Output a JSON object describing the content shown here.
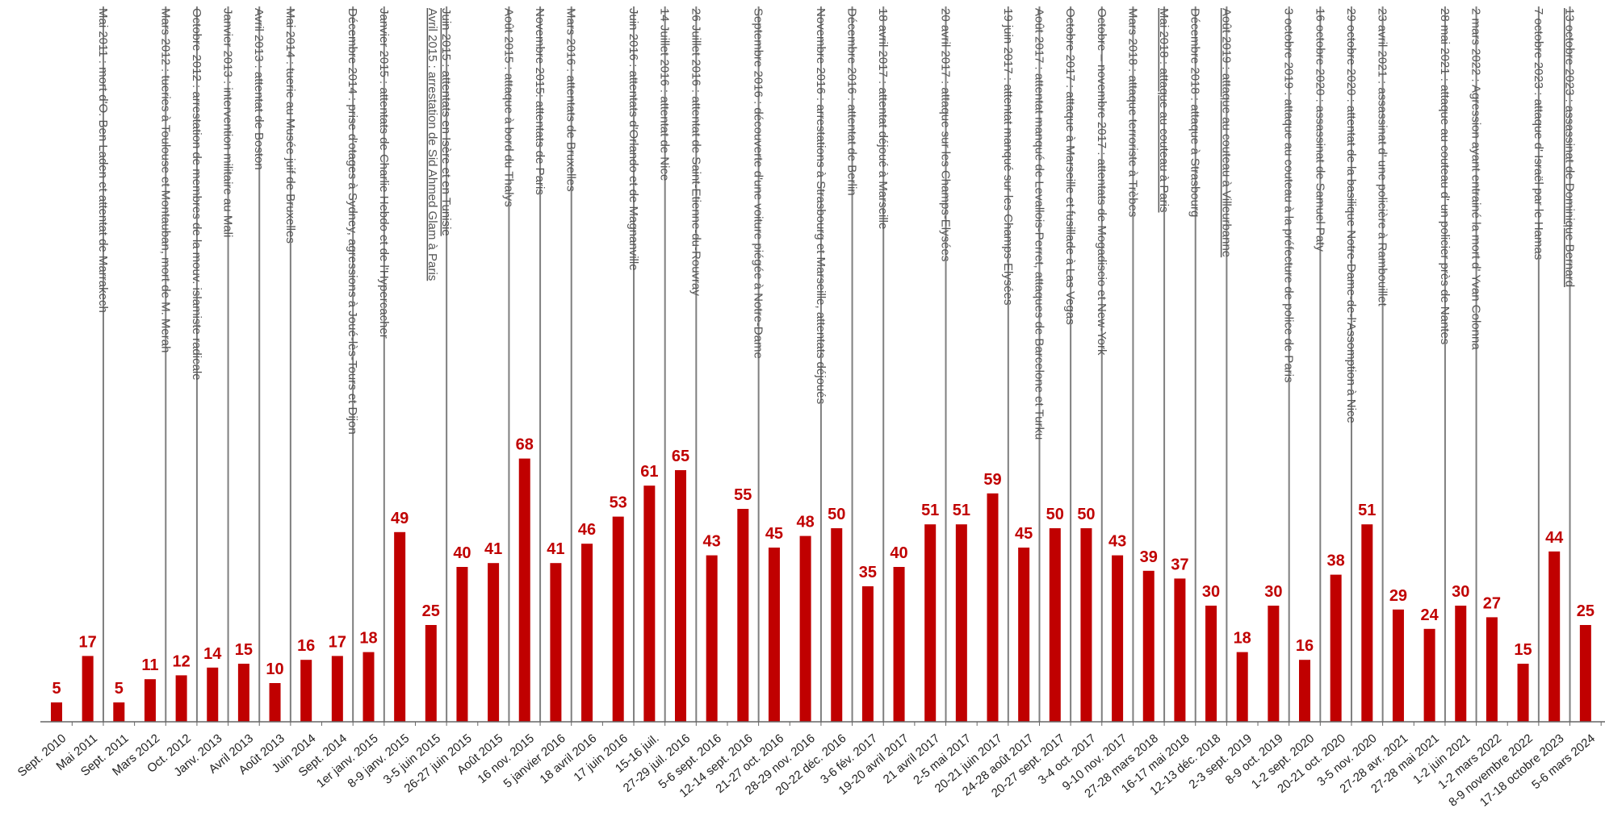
{
  "colors": {
    "bar": "#c00000",
    "value_label": "#c00000",
    "event_line": "#7f7f7f",
    "event_text": "#555555",
    "axis": "#666666",
    "tick_label": "#222222"
  },
  "chart_data": {
    "type": "bar",
    "title": "",
    "xlabel": "",
    "ylabel": "",
    "ylim": [
      0,
      90
    ],
    "grid": false,
    "legend": "none",
    "categories": [
      "Sept. 2010",
      "Mai 2011",
      "Sept. 2011",
      "Mars 2012",
      "Oct. 2012",
      "Janv. 2013",
      "Avril 2013",
      "Août 2013",
      "Juin 2014",
      "Sept. 2014",
      "1er janv. 2015",
      "8-9 janv. 2015",
      "3-5 juin 2015",
      "26-27 juin 2015",
      "Août 2015",
      "16 nov. 2015",
      "5 janvier 2016",
      "18 avril 2016",
      "17 juin 2016",
      "15-16 juil.",
      "27-29 juil. 2016",
      "5-6 sept. 2016",
      "12-14 sept. 2016",
      "21-27 oct. 2016",
      "28-29 nov. 2016",
      "20-22 déc. 2016",
      "3-6 fév. 2017",
      "19-20 avril 2017",
      "21 avril 2017",
      "2-5 mai 2017",
      "20-21 juin 2017",
      "24-28 août 2017",
      "20-27 sept. 2017",
      "3-4 oct. 2017",
      "9-10 nov. 2017",
      "27-28 mars 2018",
      "16-17 mai 2018",
      "12-13 déc. 2018",
      "2-3 sept. 2019",
      "8-9 oct. 2019",
      "1-2 sept. 2020",
      "20-21 oct. 2020",
      "3-5 nov. 2020",
      "27-28 avr. 2021",
      "27-28 mai 2021",
      "1-2 juin 2021",
      "1-2 mars 2022",
      "8-9 novembre 2022",
      "17-18 octobre 2023",
      "5-6 mars 2024"
    ],
    "values": [
      5,
      17,
      5,
      11,
      12,
      14,
      15,
      10,
      16,
      17,
      18,
      49,
      25,
      40,
      41,
      68,
      41,
      46,
      53,
      61,
      65,
      43,
      55,
      45,
      48,
      50,
      35,
      40,
      51,
      51,
      59,
      45,
      50,
      50,
      43,
      39,
      37,
      30,
      18,
      30,
      16,
      38,
      51,
      29,
      24,
      30,
      27,
      15,
      44,
      25
    ],
    "annotations": [
      {
        "text": "Mai 2011 : mort d'O. Ben Laden et attentat de Marrakech",
        "after_index": 1
      },
      {
        "text": "Mars 2012 : tueries à Toulouse et Montauban, mort de M. Merah",
        "after_index": 3
      },
      {
        "text": "Octobre 2012 : arrestation de membres de la mouv. islamiste radicale",
        "after_index": 4
      },
      {
        "text": "Janvier 2013 : intervention militaire au Mali",
        "after_index": 5
      },
      {
        "text": "Avril 2013 : attentat de Boston",
        "after_index": 6
      },
      {
        "text": "Mai 2014 : tuerie au Musée juif de Bruxelles",
        "after_index": 7
      },
      {
        "text": "Décembre 2014 : prise d'otages à Sydney, agressions à Joué-lès-Tours et Dijon",
        "after_index": 9
      },
      {
        "text": "Janvier 2015 : attentats de Charlie Hebdo et de l'Hypercacher",
        "after_index": 10
      },
      {
        "text": "Juin 2015 : attentats en Isère et en Tunisie",
        "after_index": 12,
        "underline": true
      },
      {
        "text": "Avril 2015 : arrestation de Sid Ahmed Glam à Paris",
        "after_index": 12,
        "underline": true
      },
      {
        "text": "Août 2015 : attaque à bord du Thalys",
        "after_index": 14
      },
      {
        "text": "Novembre 2015: attentats de Paris",
        "after_index": 15
      },
      {
        "text": "Mars 2016 : attentats de Bruxelles",
        "after_index": 16
      },
      {
        "text": "Juin 2016 : attentats d'Orlando et de Magnanville",
        "after_index": 18
      },
      {
        "text": "14 Juillet 2016 : attentat de Nice",
        "after_index": 19
      },
      {
        "text": "26 Juillet 2016 : attentat de Saint-Etienne-du-Rouvray",
        "after_index": 20
      },
      {
        "text": "Septembre 2016 : découverte d'une voiture piégée à Notre-Dame",
        "after_index": 22
      },
      {
        "text": "Novembre 2016 : arrestations à Strasbourg et Marseille, attentats déjoués",
        "after_index": 24
      },
      {
        "text": "Décembre 2016 : attentat de Berlin",
        "after_index": 25
      },
      {
        "text": "18 avril 2017 : attentat déjoué à Marseille",
        "after_index": 26
      },
      {
        "text": "20 avril 2017 : attaque sur les Champs-Elysées",
        "after_index": 28
      },
      {
        "text": "19 juin 2017 : attentat manqué sur les Champs-Elysées",
        "after_index": 30
      },
      {
        "text": "Août 2017 : attentat manqué de Levallois-Perret, attaques de Barcelone et Turku",
        "after_index": 31
      },
      {
        "text": "Octobre 2017 : attaque à Marseille et fusillade à Las Vegas",
        "after_index": 32
      },
      {
        "text": "Octobre – novembre 2017 : attentats de Mogadiscio et New-York",
        "after_index": 33
      },
      {
        "text": "Mars 2018 : attaque terroriste à Trèbes",
        "after_index": 34
      },
      {
        "text": "Mai 2018 : attaque au couteau à Paris",
        "after_index": 35,
        "underline": true
      },
      {
        "text": "Décembre 2018 : attaque à Strasbourg",
        "after_index": 36
      },
      {
        "text": "Août 2019 : attaque au couteau à Villeurbanne",
        "after_index": 37,
        "underline": true
      },
      {
        "text": "3 octobre 2019 : attaque au couteau à la préfecture de police de Paris",
        "after_index": 39
      },
      {
        "text": "16 octobre 2020 : assassinat de Samuel Paty",
        "after_index": 40
      },
      {
        "text": "29 octobre 2020 : attentat de la basilique Notre-Dame-de-l'Assomption à Nice",
        "after_index": 41
      },
      {
        "text": "23 avril 2021 : assassinat d'   une policière à Rambouillet",
        "after_index": 42
      },
      {
        "text": "28 mai 2021 : attaque au couteau d'    un policier près de Nantes",
        "after_index": 44
      },
      {
        "text": "2 mars 2022 : Agression ayant entrainé la mort d'   Yvan Colonna",
        "after_index": 45
      },
      {
        "text": "7 octobre 2023 : attaque d'   Israël par le Hamas",
        "after_index": 47
      },
      {
        "text": "13 octobre 2023 : assassinat de Dominique Bernard",
        "after_index": 48,
        "underline": true
      }
    ]
  }
}
